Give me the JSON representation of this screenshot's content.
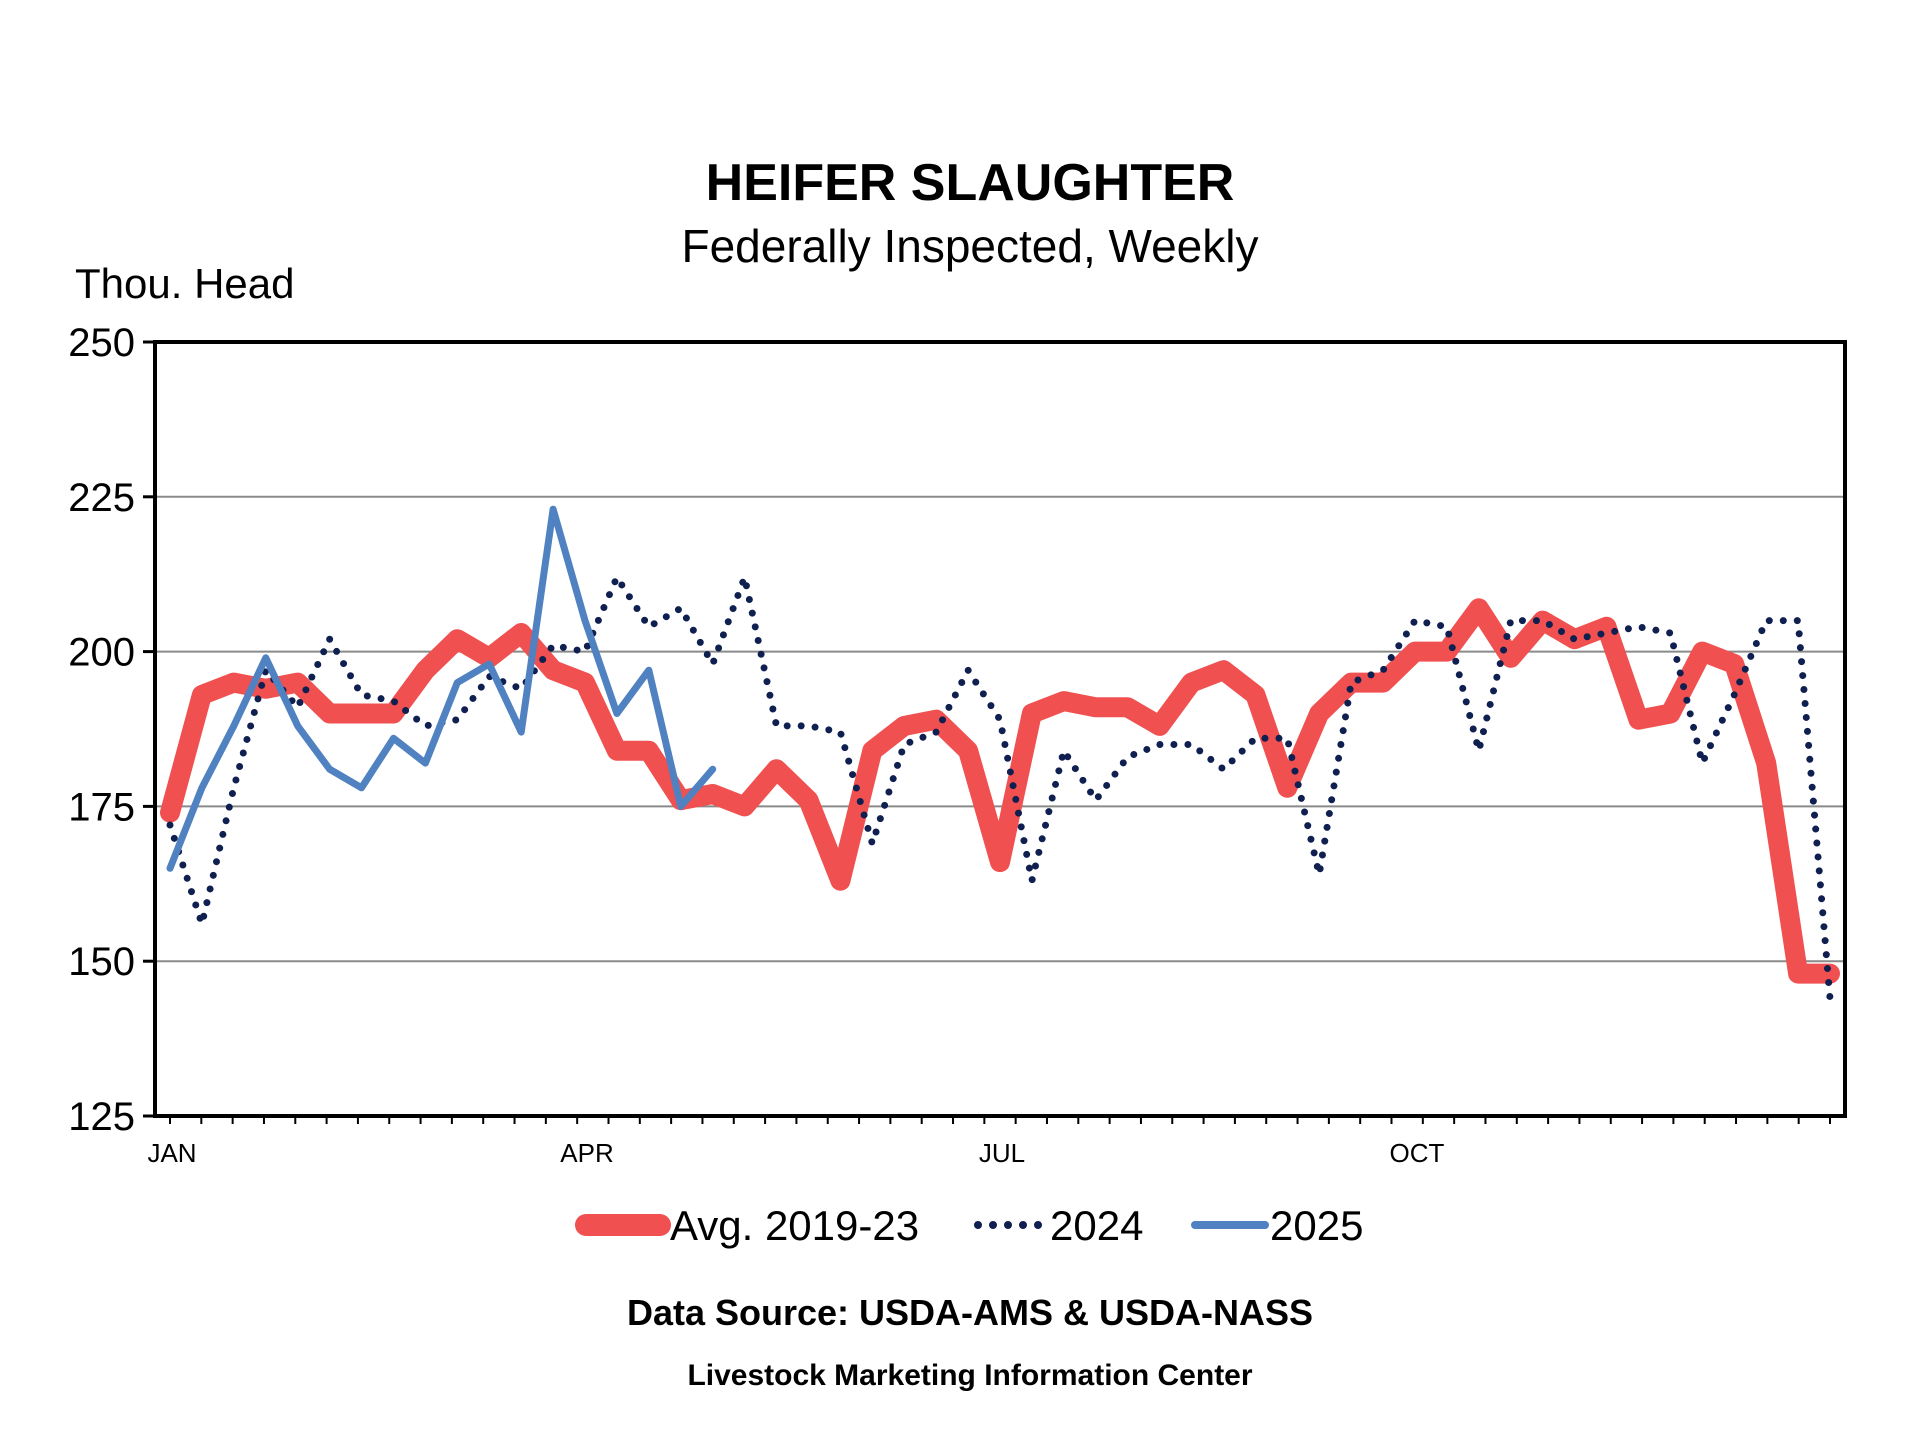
{
  "chart_data": {
    "type": "line",
    "title": "HEIFER SLAUGHTER",
    "subtitle": "Federally Inspected, Weekly",
    "ylabel": "Thou. Head",
    "ylim": [
      125,
      250
    ],
    "yticks": [
      125,
      150,
      175,
      200,
      225,
      250
    ],
    "xlabel": "",
    "xlim": [
      1,
      53
    ],
    "xtick_labels": [
      {
        "week": 1,
        "label": "JAN"
      },
      {
        "week": 14,
        "label": "APR"
      },
      {
        "week": 27,
        "label": "JUL"
      },
      {
        "week": 40,
        "label": "OCT"
      }
    ],
    "grid": true,
    "legend_position": "bottom",
    "series": [
      {
        "name": "Avg. 2019-23",
        "style": "thick-solid",
        "color": "#F05050",
        "x": [
          1,
          2,
          3,
          4,
          5,
          6,
          7,
          8,
          9,
          10,
          11,
          12,
          13,
          14,
          15,
          16,
          17,
          18,
          19,
          20,
          21,
          22,
          23,
          24,
          25,
          26,
          27,
          28,
          29,
          30,
          31,
          32,
          33,
          34,
          35,
          36,
          37,
          38,
          39,
          40,
          41,
          42,
          43,
          44,
          45,
          46,
          47,
          48,
          49,
          50,
          51,
          52,
          53
        ],
        "values": [
          174,
          193,
          195,
          194,
          195,
          190,
          190,
          190,
          197,
          202,
          199,
          203,
          197,
          195,
          184,
          184,
          176,
          177,
          175,
          181,
          176,
          163,
          184,
          188,
          189,
          184,
          166,
          190,
          192,
          191,
          191,
          188,
          195,
          197,
          193,
          178,
          190,
          195,
          195,
          200,
          200,
          207,
          199,
          205,
          202,
          204,
          189,
          190,
          200,
          198,
          182,
          148,
          148
        ]
      },
      {
        "name": "2024",
        "style": "dotted",
        "color": "#0F1F4F",
        "x": [
          1,
          2,
          3,
          4,
          5,
          6,
          7,
          8,
          9,
          10,
          11,
          12,
          13,
          14,
          15,
          16,
          17,
          18,
          19,
          20,
          21,
          22,
          23,
          24,
          25,
          26,
          27,
          28,
          29,
          30,
          31,
          32,
          33,
          34,
          35,
          36,
          37,
          38,
          39,
          40,
          41,
          42,
          43,
          44,
          45,
          46,
          47,
          48,
          49,
          50,
          51,
          52,
          53
        ],
        "values": [
          172,
          156,
          178,
          197,
          191,
          202,
          193,
          192,
          188,
          189,
          196,
          194,
          201,
          200,
          212,
          204,
          207,
          198,
          212,
          188,
          188,
          187,
          169,
          185,
          187,
          197,
          189,
          163,
          184,
          176,
          183,
          185,
          185,
          181,
          186,
          186,
          164,
          195,
          197,
          205,
          204,
          184,
          205,
          205,
          202,
          203,
          204,
          203,
          182,
          193,
          205,
          205,
          144
        ]
      },
      {
        "name": "2025",
        "style": "solid",
        "color": "#5081C0",
        "x": [
          1,
          2,
          3,
          4,
          5,
          6,
          7,
          8,
          9,
          10,
          11,
          12,
          13,
          14,
          15,
          16,
          17,
          18,
          19
        ],
        "values": [
          165,
          178,
          188,
          199,
          188,
          181,
          178,
          186,
          182,
          195,
          198,
          187,
          223,
          205,
          190,
          197,
          175,
          181,
          null
        ]
      }
    ],
    "source_text": "Data Source:  USDA-AMS & USDA-NASS",
    "organization": "Livestock Marketing Information Center"
  }
}
